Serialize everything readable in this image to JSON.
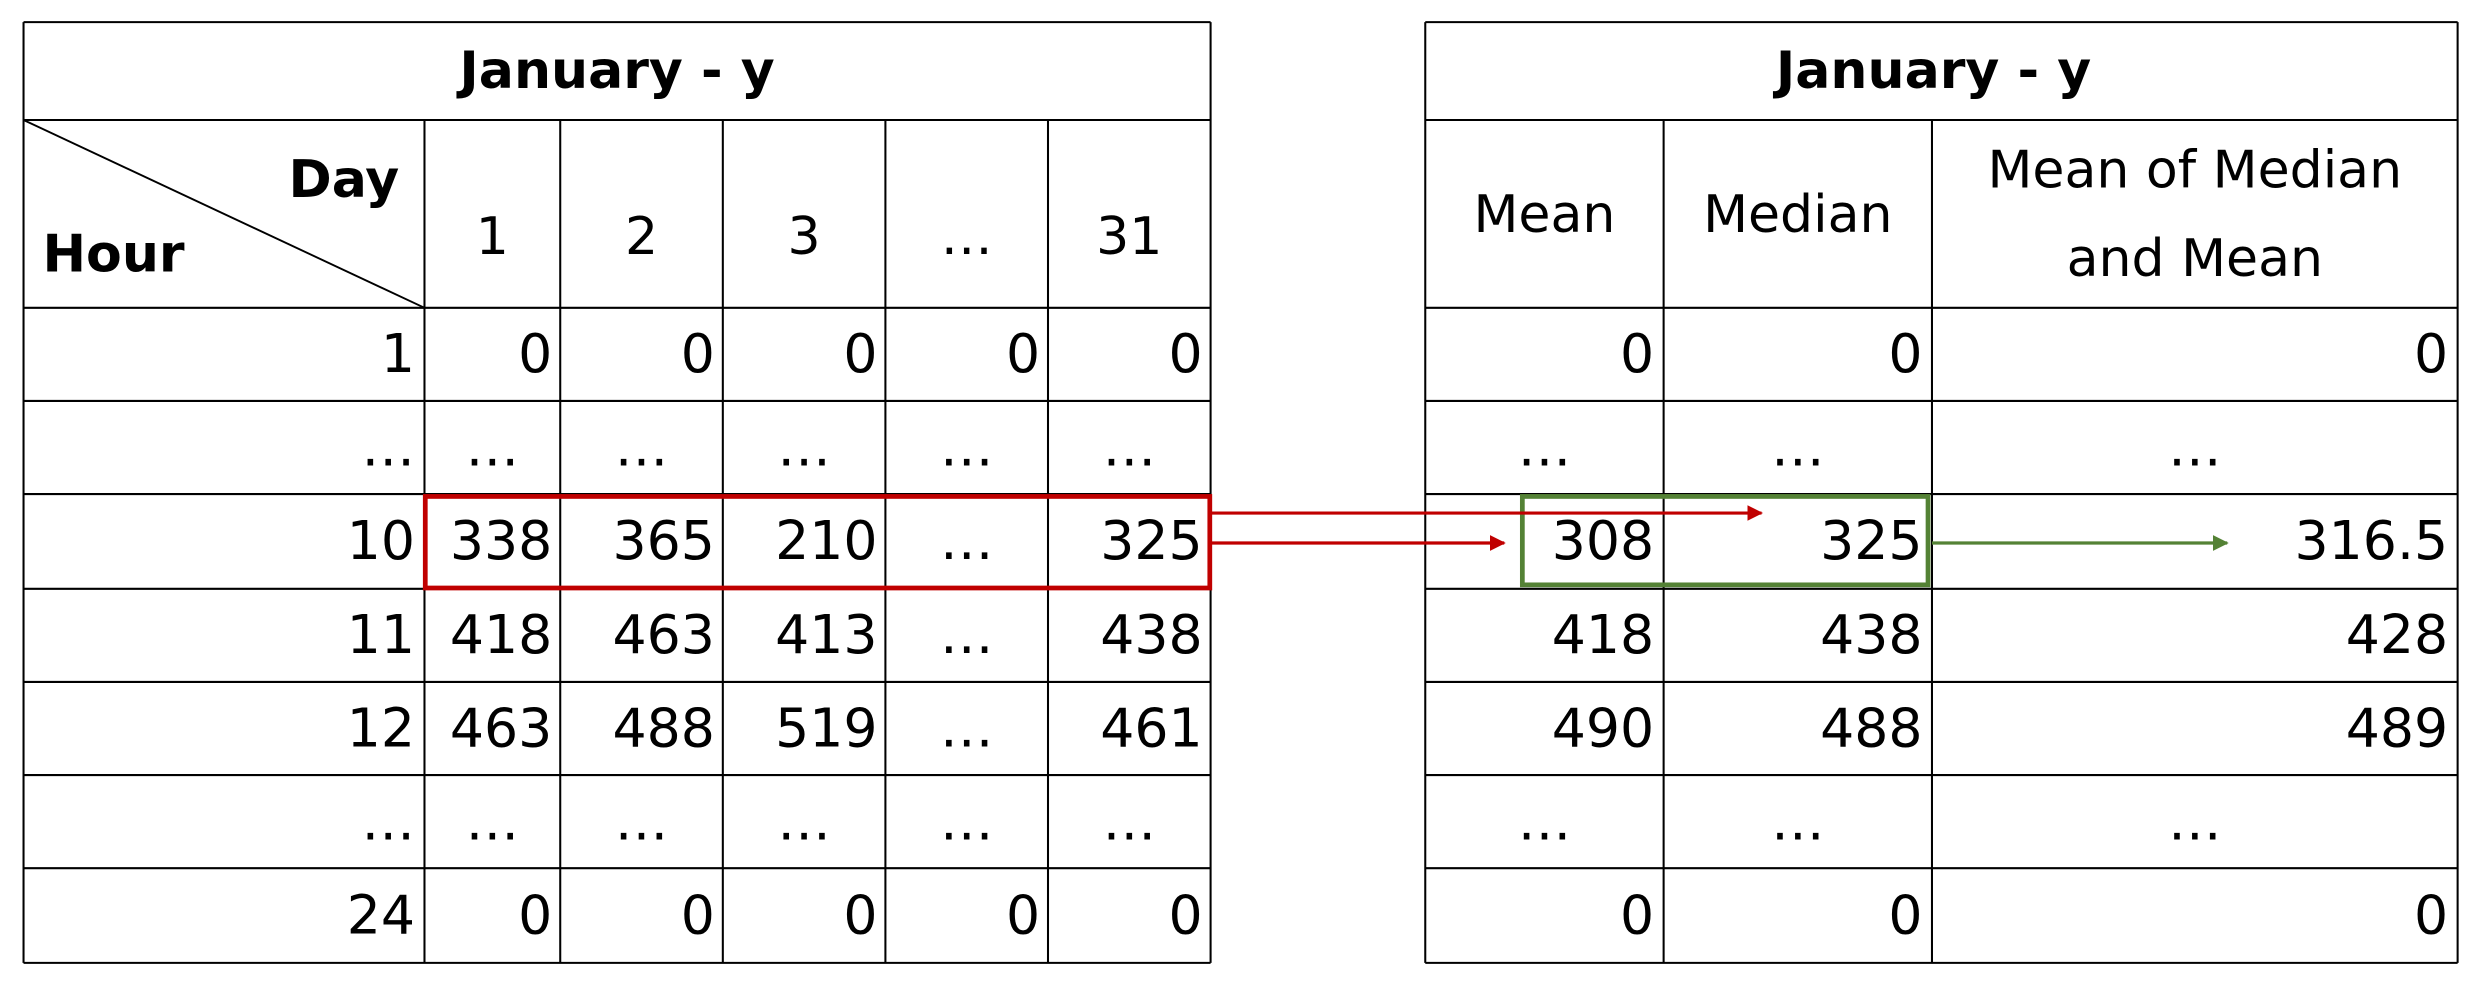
{
  "left_table": {
    "title": "January - y",
    "corner": {
      "column_header": "Day",
      "row_header": "Hour"
    },
    "columns": [
      "1",
      "2",
      "3",
      "…",
      "31"
    ],
    "rows": [
      {
        "hour": "1",
        "values": [
          "0",
          "0",
          "0",
          "0",
          "0"
        ]
      },
      {
        "hour": "…",
        "values": [
          "…",
          "…",
          "…",
          "…",
          "…"
        ]
      },
      {
        "hour": "10",
        "values": [
          "338",
          "365",
          "210",
          "…",
          "325"
        ]
      },
      {
        "hour": "11",
        "values": [
          "418",
          "463",
          "413",
          "…",
          "438"
        ]
      },
      {
        "hour": "12",
        "values": [
          "463",
          "488",
          "519",
          "…",
          "461"
        ]
      },
      {
        "hour": "…",
        "values": [
          "…",
          "…",
          "…",
          "…",
          "…"
        ]
      },
      {
        "hour": "24",
        "values": [
          "0",
          "0",
          "0",
          "0",
          "0"
        ]
      }
    ]
  },
  "right_table": {
    "title": "January - y",
    "columns": [
      [
        "Mean"
      ],
      [
        "Median"
      ],
      [
        "Mean of Median",
        "and Mean"
      ]
    ],
    "rows": [
      [
        "0",
        "0",
        "0"
      ],
      [
        "…",
        "…",
        "…"
      ],
      [
        "308",
        "325",
        "316.5"
      ],
      [
        "418",
        "438",
        "428"
      ],
      [
        "490",
        "488",
        "489"
      ],
      [
        "…",
        "…",
        "…"
      ],
      [
        "0",
        "0",
        "0"
      ]
    ]
  }
}
